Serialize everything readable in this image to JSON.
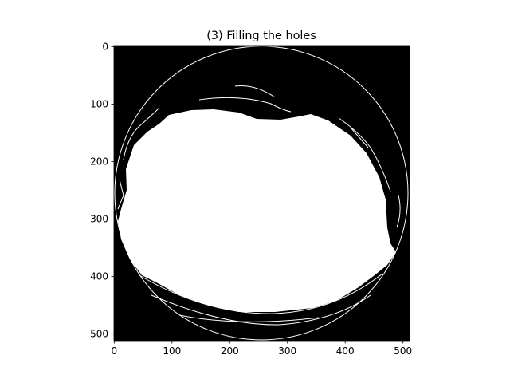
{
  "chart_data": {
    "type": "image",
    "title": "(3) Filling the holes",
    "xlim": [
      -0.5,
      511.5
    ],
    "ylim": [
      511.5,
      -0.5
    ],
    "xticks": [
      0,
      100,
      200,
      300,
      400,
      500
    ],
    "yticks": [
      0,
      100,
      200,
      300,
      400,
      500
    ]
  }
}
